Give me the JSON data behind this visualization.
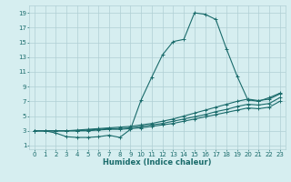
{
  "xlabel": "Humidex (Indice chaleur)",
  "bg_color": "#d6eef0",
  "grid_color": "#b0cfd4",
  "line_color": "#1a6b6b",
  "line_width": 0.8,
  "marker": "+",
  "marker_size": 3,
  "marker_edge_width": 0.7,
  "xlim": [
    -0.5,
    23.5
  ],
  "ylim": [
    0.5,
    20
  ],
  "xticks": [
    0,
    1,
    2,
    3,
    4,
    5,
    6,
    7,
    8,
    9,
    10,
    11,
    12,
    13,
    14,
    15,
    16,
    17,
    18,
    19,
    20,
    21,
    22,
    23
  ],
  "yticks": [
    1,
    3,
    5,
    7,
    9,
    11,
    13,
    15,
    17,
    19
  ],
  "tick_fontsize": 5,
  "xlabel_fontsize": 6,
  "series": [
    {
      "x": [
        0,
        1,
        2,
        3,
        4,
        5,
        6,
        7,
        8,
        9,
        10,
        11,
        12,
        13,
        14,
        15,
        16,
        17,
        18,
        19,
        20,
        21,
        22,
        23
      ],
      "y": [
        3,
        3,
        2.7,
        2.2,
        2.1,
        2.1,
        2.2,
        2.4,
        2.1,
        3.2,
        7.2,
        10.3,
        13.3,
        15.1,
        15.4,
        19.0,
        18.8,
        18.1,
        14.1,
        10.4,
        7.2,
        7.0,
        7.5,
        8.1
      ]
    },
    {
      "x": [
        0,
        1,
        2,
        3,
        4,
        5,
        6,
        7,
        8,
        9,
        10,
        11,
        12,
        13,
        14,
        15,
        16,
        17,
        18,
        19,
        20,
        21,
        22,
        23
      ],
      "y": [
        3.0,
        3.0,
        3.0,
        3.0,
        3.1,
        3.2,
        3.3,
        3.4,
        3.5,
        3.6,
        3.8,
        4.0,
        4.3,
        4.6,
        5.0,
        5.4,
        5.8,
        6.2,
        6.6,
        7.0,
        7.3,
        7.1,
        7.3,
        8.0
      ]
    },
    {
      "x": [
        0,
        1,
        2,
        3,
        4,
        5,
        6,
        7,
        8,
        9,
        10,
        11,
        12,
        13,
        14,
        15,
        16,
        17,
        18,
        19,
        20,
        21,
        22,
        23
      ],
      "y": [
        3.0,
        3.0,
        3.0,
        3.0,
        3.0,
        3.1,
        3.2,
        3.3,
        3.3,
        3.4,
        3.6,
        3.8,
        4.0,
        4.3,
        4.6,
        4.9,
        5.2,
        5.6,
        5.9,
        6.3,
        6.6,
        6.5,
        6.7,
        7.5
      ]
    },
    {
      "x": [
        0,
        1,
        2,
        3,
        4,
        5,
        6,
        7,
        8,
        9,
        10,
        11,
        12,
        13,
        14,
        15,
        16,
        17,
        18,
        19,
        20,
        21,
        22,
        23
      ],
      "y": [
        3.0,
        3.0,
        3.0,
        3.0,
        3.0,
        3.0,
        3.1,
        3.2,
        3.2,
        3.3,
        3.4,
        3.6,
        3.8,
        4.0,
        4.3,
        4.6,
        4.9,
        5.2,
        5.5,
        5.8,
        6.1,
        6.0,
        6.2,
        7.0
      ]
    }
  ]
}
